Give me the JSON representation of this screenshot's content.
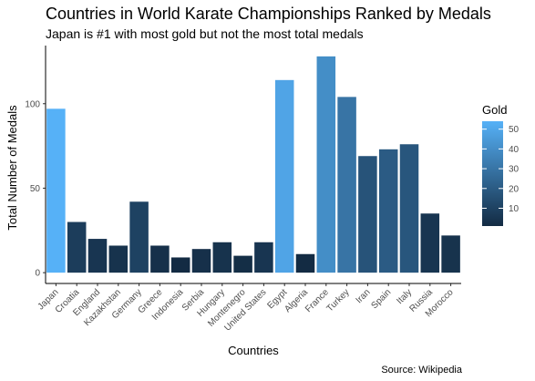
{
  "title": "Countries in World Karate Championships Ranked by Medals",
  "subtitle": "Japan is #1 with most gold but not the most total medals",
  "caption": "Source: Wikipedia",
  "chart_data": {
    "type": "bar",
    "title": "Countries in World Karate Championships Ranked by Medals",
    "subtitle": "Japan is #1 with most gold but not the most total medals",
    "xlabel": "Countries",
    "ylabel": "Total Number of Medals",
    "ylim": [
      0,
      130
    ],
    "yticks": [
      0,
      50,
      100
    ],
    "grid": false,
    "legend_placement": "right",
    "fill_legend": {
      "title": "Gold",
      "ticks": [
        10,
        20,
        30,
        40,
        50
      ],
      "range": [
        1,
        54
      ],
      "colors": {
        "low": "#132B43",
        "high": "#56B1F7"
      }
    },
    "categories": [
      "Japan",
      "Croatia",
      "England",
      "Kazakhstan",
      "Germany",
      "Greece",
      "Indonesia",
      "Serbia",
      "Hungary",
      "Montenegro",
      "United States",
      "Egypt",
      "Algeria",
      "France",
      "Turkey",
      "Iran",
      "Spain",
      "Italy",
      "Russia",
      "Morocco"
    ],
    "series": [
      {
        "metric": "total",
        "values": [
          97,
          30,
          20,
          16,
          42,
          16,
          9,
          14,
          18,
          10,
          18,
          114,
          11,
          128,
          104,
          69,
          73,
          76,
          35,
          22
        ]
      },
      {
        "metric": "gold",
        "values": [
          54,
          8,
          5,
          4,
          10,
          3,
          1,
          3,
          4,
          2,
          5,
          49,
          1,
          40,
          30,
          17,
          20,
          18,
          5,
          4
        ]
      }
    ]
  }
}
